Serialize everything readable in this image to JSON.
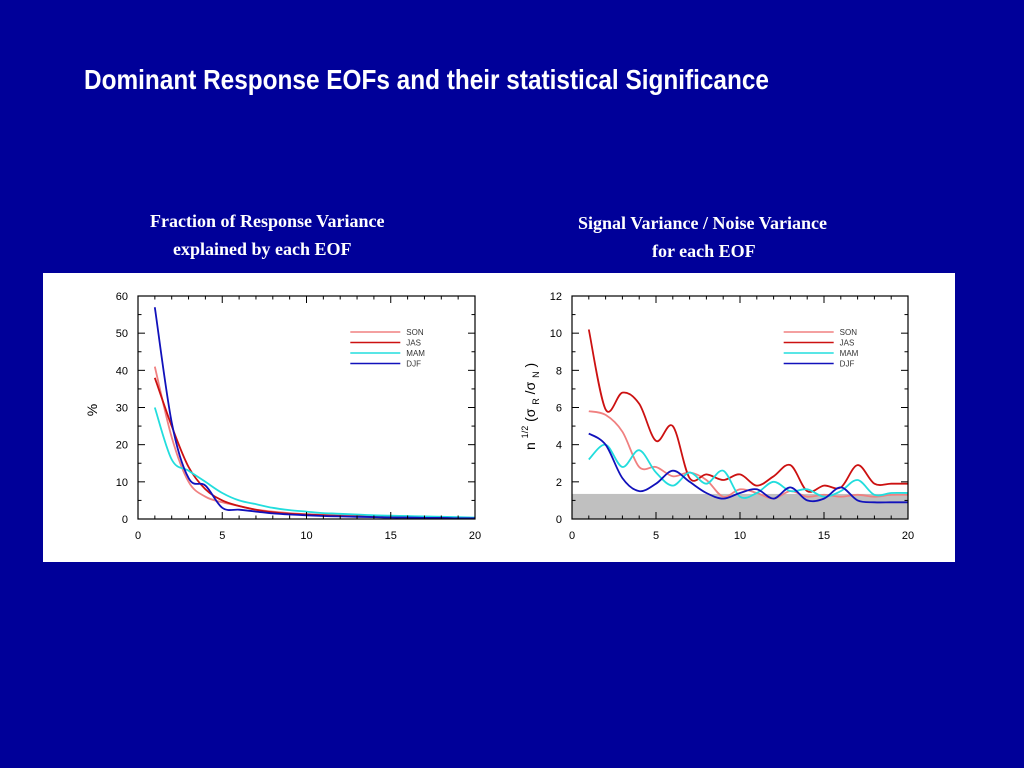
{
  "slide": {
    "title": "Dominant Response EOFs and their statistical Significance",
    "left_caption_line1": "Fraction of Response Variance",
    "left_caption_line2": "explained by each EOF",
    "right_caption_line1": "Signal Variance / Noise Variance",
    "right_caption_line2": "for each EOF"
  },
  "colors": {
    "background": "#000099",
    "SON": "#f08080",
    "JAS": "#cc1111",
    "MAM": "#22dddd",
    "DJF": "#1111bb",
    "significance_band": "#c0c0c0"
  },
  "chart_data": [
    {
      "type": "line",
      "title": "Fraction of Response Variance explained by each EOF",
      "xlabel": "",
      "ylabel": "%",
      "xlim": [
        0,
        20
      ],
      "ylim": [
        0,
        60
      ],
      "xticks": [
        0,
        5,
        10,
        15,
        20
      ],
      "yticks": [
        0,
        10,
        20,
        30,
        40,
        50,
        60
      ],
      "grid": false,
      "legend_position": "top-right",
      "x": [
        1,
        2,
        3,
        4,
        5,
        6,
        7,
        8,
        9,
        10,
        11,
        12,
        13,
        14,
        15,
        16,
        17,
        18,
        19,
        20
      ],
      "series": [
        {
          "name": "SON",
          "values": [
            41,
            22,
            10,
            6,
            4.5,
            3.5,
            2.5,
            2,
            1.6,
            1.3,
            1.1,
            1,
            0.9,
            0.8,
            0.6,
            0.5,
            0.4,
            0.3,
            0.3,
            0.2
          ]
        },
        {
          "name": "JAS",
          "values": [
            38,
            25,
            14,
            8,
            5,
            3.5,
            2.5,
            1.8,
            1.4,
            1.2,
            1,
            0.8,
            0.7,
            0.6,
            0.5,
            0.4,
            0.4,
            0.3,
            0.3,
            0.2
          ]
        },
        {
          "name": "MAM",
          "values": [
            30,
            16,
            13,
            10,
            7,
            5,
            4,
            3,
            2.4,
            2,
            1.6,
            1.4,
            1.2,
            1,
            0.9,
            0.8,
            0.7,
            0.6,
            0.5,
            0.4
          ]
        },
        {
          "name": "DJF",
          "values": [
            57,
            26,
            11,
            9,
            3,
            2.5,
            2,
            1.5,
            1.2,
            1,
            0.8,
            0.7,
            0.6,
            0.5,
            0.4,
            0.4,
            0.3,
            0.3,
            0.2,
            0.2
          ]
        }
      ]
    },
    {
      "type": "line",
      "title": "Signal Variance / Noise Variance for each EOF",
      "xlabel": "",
      "ylabel_main": "n",
      "ylabel_sup": "1/2",
      "ylabel_paren_open": "(σ",
      "ylabel_sub1": "R",
      "ylabel_mid": "/σ",
      "ylabel_sub2": "N",
      "ylabel_paren_close": ")",
      "xlim": [
        0,
        20
      ],
      "ylim": [
        0,
        12
      ],
      "xticks": [
        0,
        5,
        10,
        15,
        20
      ],
      "yticks": [
        0,
        2,
        4,
        6,
        8,
        10,
        12
      ],
      "grid": false,
      "legend_position": "top-right",
      "significance_threshold": 1.35,
      "x": [
        1,
        2,
        3,
        4,
        5,
        6,
        7,
        8,
        9,
        10,
        11,
        12,
        13,
        14,
        15,
        16,
        17,
        18,
        19,
        20
      ],
      "series": [
        {
          "name": "SON",
          "values": [
            5.8,
            5.6,
            4.7,
            2.8,
            2.8,
            2.3,
            2.5,
            2.1,
            1.2,
            1.6,
            1.4,
            1.1,
            1.5,
            1.2,
            1.3,
            1.2,
            1.3,
            1.2,
            1.3,
            1.3
          ]
        },
        {
          "name": "JAS",
          "values": [
            10.2,
            5.9,
            6.8,
            6.2,
            4.2,
            5,
            2.2,
            2.4,
            2.1,
            2.4,
            1.8,
            2.3,
            2.9,
            1.5,
            1.8,
            1.7,
            2.9,
            1.9,
            1.9,
            1.9
          ]
        },
        {
          "name": "MAM",
          "values": [
            3.2,
            4.0,
            2.8,
            3.7,
            2.5,
            1.8,
            2.5,
            1.9,
            2.6,
            1.2,
            1.4,
            2.0,
            1.5,
            1.6,
            1.2,
            1.5,
            2.1,
            1.3,
            1.4,
            1.4
          ]
        },
        {
          "name": "DJF",
          "values": [
            4.6,
            4.0,
            2.2,
            1.5,
            1.9,
            2.6,
            2.0,
            1.4,
            1.1,
            1.4,
            1.6,
            1.1,
            1.7,
            1.0,
            1.1,
            1.7,
            1.0,
            0.9,
            0.9,
            0.9
          ]
        }
      ]
    }
  ]
}
